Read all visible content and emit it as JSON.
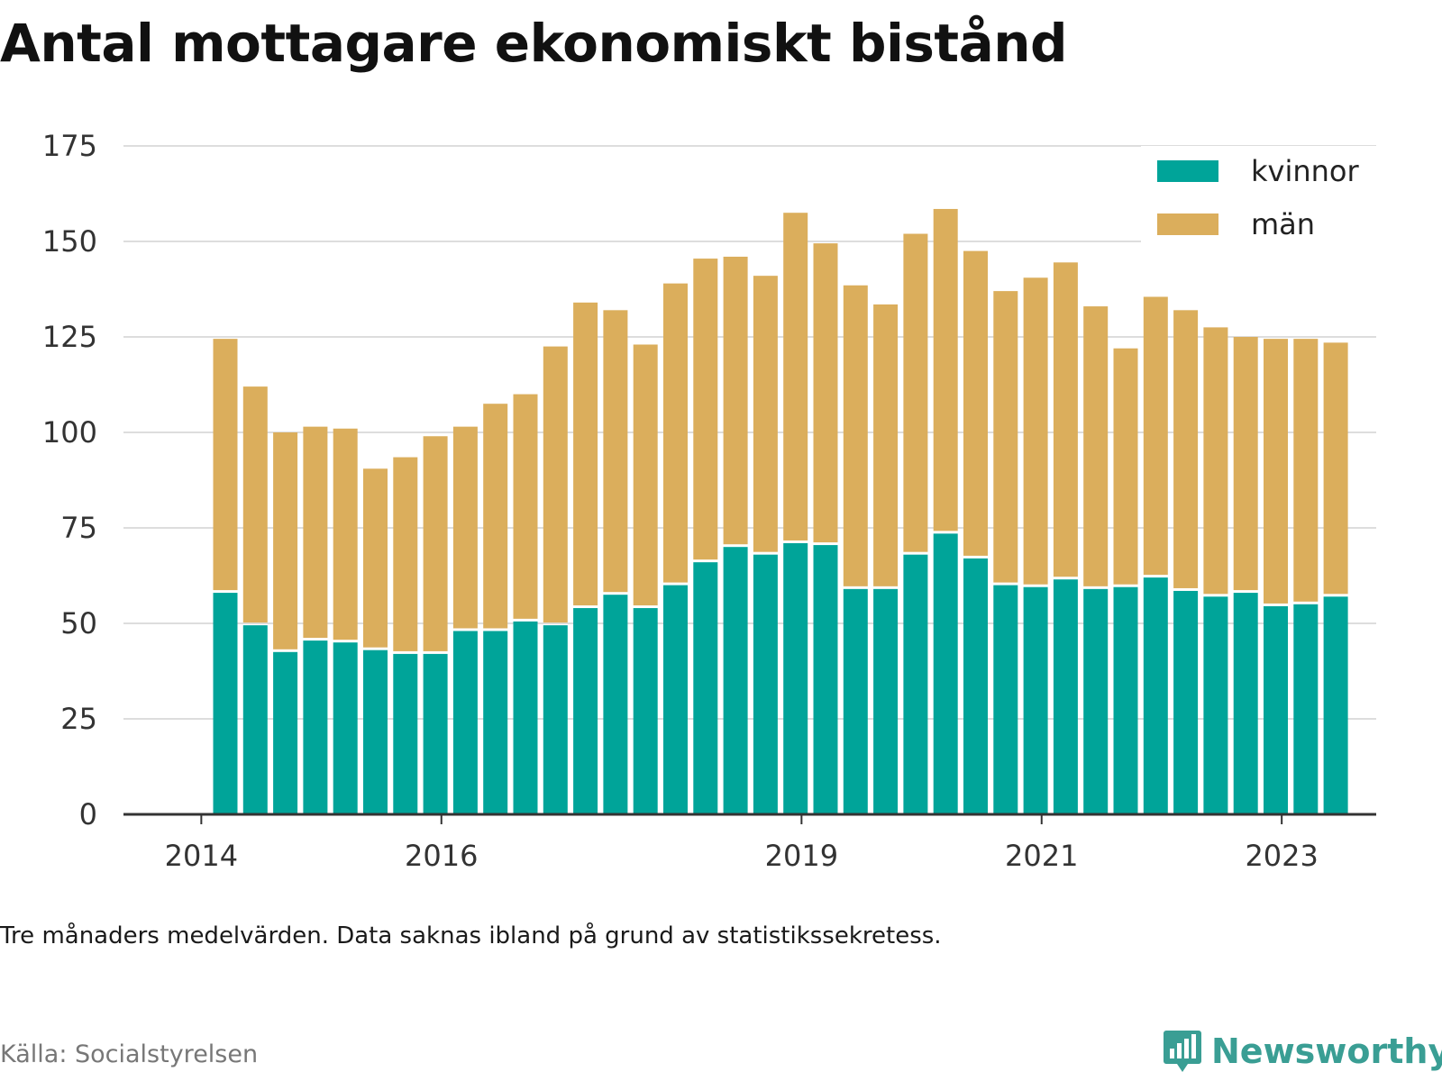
{
  "title": "Antal mottagare ekonomiskt bistånd",
  "note": "Tre månaders medelvärden. Data saknas ibland på grund av statistikssekretess.",
  "source": "Källa: Socialstyrelsen",
  "brand": "Newsworthy",
  "colors": {
    "kvinnor": "#00a499",
    "man": "#dbae5c",
    "grid": "#dddddd",
    "axis": "#333333",
    "brand": "#3a9e94"
  },
  "chart_data": {
    "type": "bar",
    "stacked": true,
    "x_tick_labels": [
      "2014",
      "2016",
      "2019",
      "2021",
      "2023"
    ],
    "x_tick_positions": [
      -0.8,
      7.2,
      19.2,
      27.2,
      35.2
    ],
    "y_ticks": [
      0,
      25,
      50,
      75,
      100,
      125,
      150,
      175
    ],
    "ylim": [
      0,
      175
    ],
    "grid": true,
    "legend_position": "top-right",
    "series": [
      {
        "name": "kvinnor",
        "values": [
          58,
          49.5,
          42.5,
          45.5,
          45,
          43,
          42,
          42,
          48,
          48,
          50.5,
          49.5,
          54,
          57.5,
          54,
          60,
          66,
          70,
          68,
          71,
          70.5,
          59,
          59,
          68,
          73.5,
          67,
          60,
          59.5,
          61.5,
          59,
          59.5,
          62,
          58.5,
          57,
          58,
          54.5,
          55,
          57
        ]
      },
      {
        "name": "män",
        "values": [
          66.5,
          62.5,
          57.5,
          56,
          56,
          47.5,
          51.5,
          57,
          53.5,
          59.5,
          59.5,
          73,
          80,
          74.5,
          69,
          79,
          79.5,
          76,
          73,
          86.5,
          79,
          79.5,
          74.5,
          84,
          85,
          80.5,
          77,
          81,
          83,
          74,
          62.5,
          73.5,
          73.5,
          70.5,
          67,
          70,
          69.5,
          66.5
        ]
      }
    ]
  }
}
